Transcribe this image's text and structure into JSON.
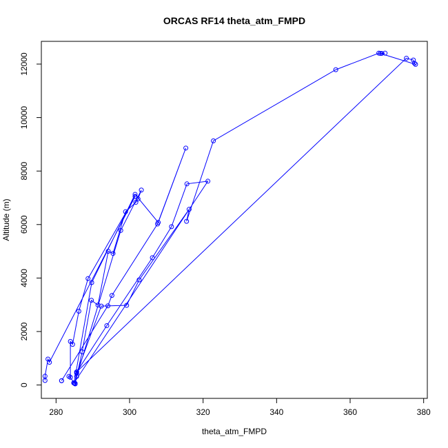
{
  "chart_data": {
    "type": "line",
    "title": "ORCAS RF14 theta_atm_FMPD",
    "xlabel": "theta_atm_FMPD",
    "ylabel": "Altitude (m)",
    "xlim": [
      276,
      381
    ],
    "ylim": [
      -500,
      12850
    ],
    "x_ticks": [
      280,
      300,
      320,
      340,
      360,
      380
    ],
    "y_ticks": [
      0,
      2000,
      4000,
      6000,
      8000,
      10000,
      12000
    ],
    "grid": false,
    "legend": "none",
    "markers": "open-circle",
    "color": "#0000ff",
    "series": [
      {
        "x": [
          277.0,
          277.0,
          277.8,
          278.2,
          301.5,
          288.7,
          286.2,
          284.5,
          283.9,
          283.9,
          283.5,
          285.2,
          287.1,
          289.6,
          291.4,
          294.2,
          295.5,
          298.9,
          301.7,
          302.3,
          303.2,
          297.6,
          285.6,
          285.0,
          284.9,
          284.8,
          285.2,
          285.6,
          292.3,
          299.2,
          302.6,
          316.2,
          315.5,
          322.8,
          356.1,
          367.8,
          368.6,
          369.5,
          368.2,
          377.8,
          377.5,
          377.2,
          375.3,
          285.6,
          285.6,
          293.8,
          306.2,
          311.4,
          315.6,
          321.3,
          284.9,
          289.7,
          301.5,
          307.8,
          315.3,
          307.6,
          295.2,
          294.1,
          281.5,
          281.5
        ],
        "y": [
          170,
          330,
          970,
          850,
          7050,
          3980,
          2760,
          1520,
          1630,
          290,
          320,
          60,
          1240,
          3170,
          2990,
          5000,
          4920,
          6480,
          6830,
          6960,
          7290,
          5780,
          320,
          80,
          70,
          80,
          40,
          440,
          2950,
          2980,
          3930,
          6570,
          6120,
          9130,
          11790,
          12410,
          12400,
          12410,
          12400,
          11990,
          12030,
          12150,
          12220,
          490,
          480,
          2220,
          4760,
          5920,
          7520,
          7620,
          80,
          3830,
          7130,
          6080,
          8860,
          6020,
          3350,
          2960,
          160,
          160
        ]
      }
    ]
  }
}
